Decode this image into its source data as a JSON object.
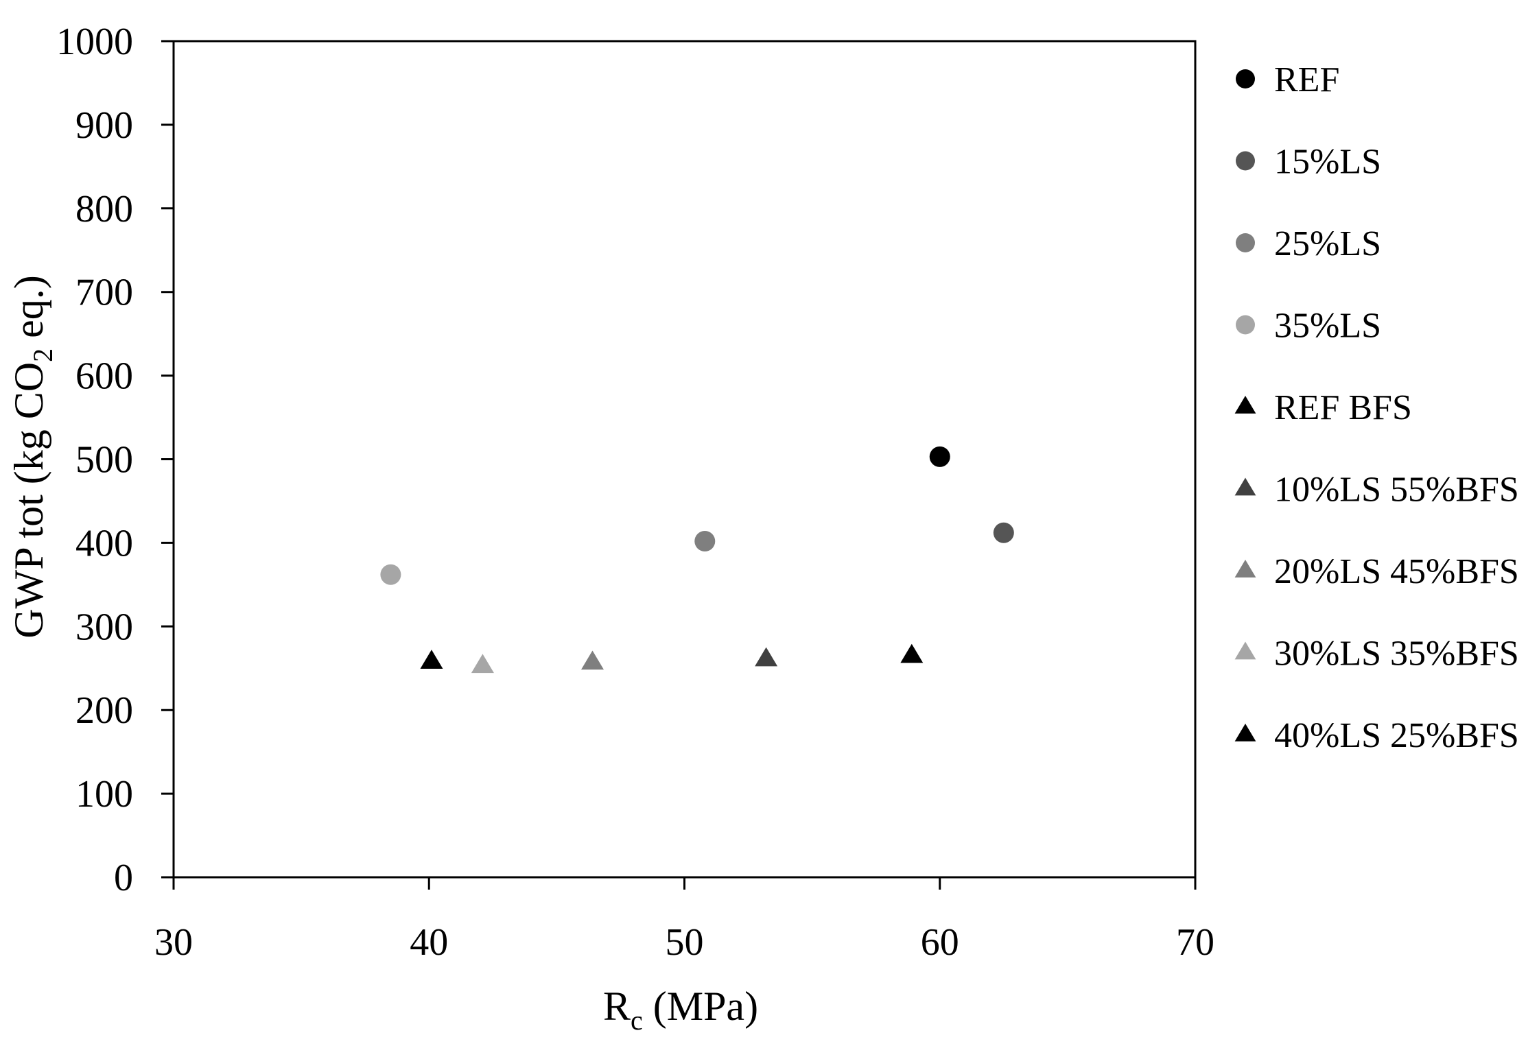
{
  "chart_data": {
    "type": "scatter",
    "title": "",
    "xlabel": {
      "main": "R",
      "sub": "c",
      "rest": " (MPa)"
    },
    "ylabel": {
      "pre": "GWP tot (kg CO",
      "sub": "2",
      "post": " eq.)"
    },
    "xlim": [
      30,
      70
    ],
    "ylim": [
      0,
      1000
    ],
    "xticks": [
      30,
      40,
      50,
      60,
      70
    ],
    "yticks": [
      0,
      100,
      200,
      300,
      400,
      500,
      600,
      700,
      800,
      900,
      1000
    ],
    "grid": false,
    "legend_position": "right",
    "series": [
      {
        "name": "REF",
        "marker": "circle",
        "color": "#000000",
        "points": [
          {
            "x": 60.0,
            "y": 503
          }
        ]
      },
      {
        "name": "15%LS",
        "marker": "circle",
        "color": "#555555",
        "points": [
          {
            "x": 62.5,
            "y": 412
          }
        ]
      },
      {
        "name": "25%LS",
        "marker": "circle",
        "color": "#7f7f7f",
        "points": [
          {
            "x": 50.8,
            "y": 402
          }
        ]
      },
      {
        "name": "35%LS",
        "marker": "circle",
        "color": "#a6a6a6",
        "points": [
          {
            "x": 38.5,
            "y": 362
          }
        ]
      },
      {
        "name": "REF BFS",
        "marker": "triangle",
        "color": "#000000",
        "points": [
          {
            "x": 58.9,
            "y": 265
          }
        ]
      },
      {
        "name": "10%LS 55%BFS",
        "marker": "triangle",
        "color": "#404040",
        "points": [
          {
            "x": 53.2,
            "y": 261
          }
        ]
      },
      {
        "name": "20%LS 45%BFS",
        "marker": "triangle",
        "color": "#7f7f7f",
        "points": [
          {
            "x": 46.4,
            "y": 257
          }
        ]
      },
      {
        "name": "30%LS 35%BFS",
        "marker": "triangle",
        "color": "#a6a6a6",
        "points": [
          {
            "x": 42.1,
            "y": 253
          }
        ]
      },
      {
        "name": "40%LS 25%BFS",
        "marker": "triangle",
        "color": "#000000",
        "points": [
          {
            "x": 40.1,
            "y": 258
          }
        ]
      }
    ]
  }
}
